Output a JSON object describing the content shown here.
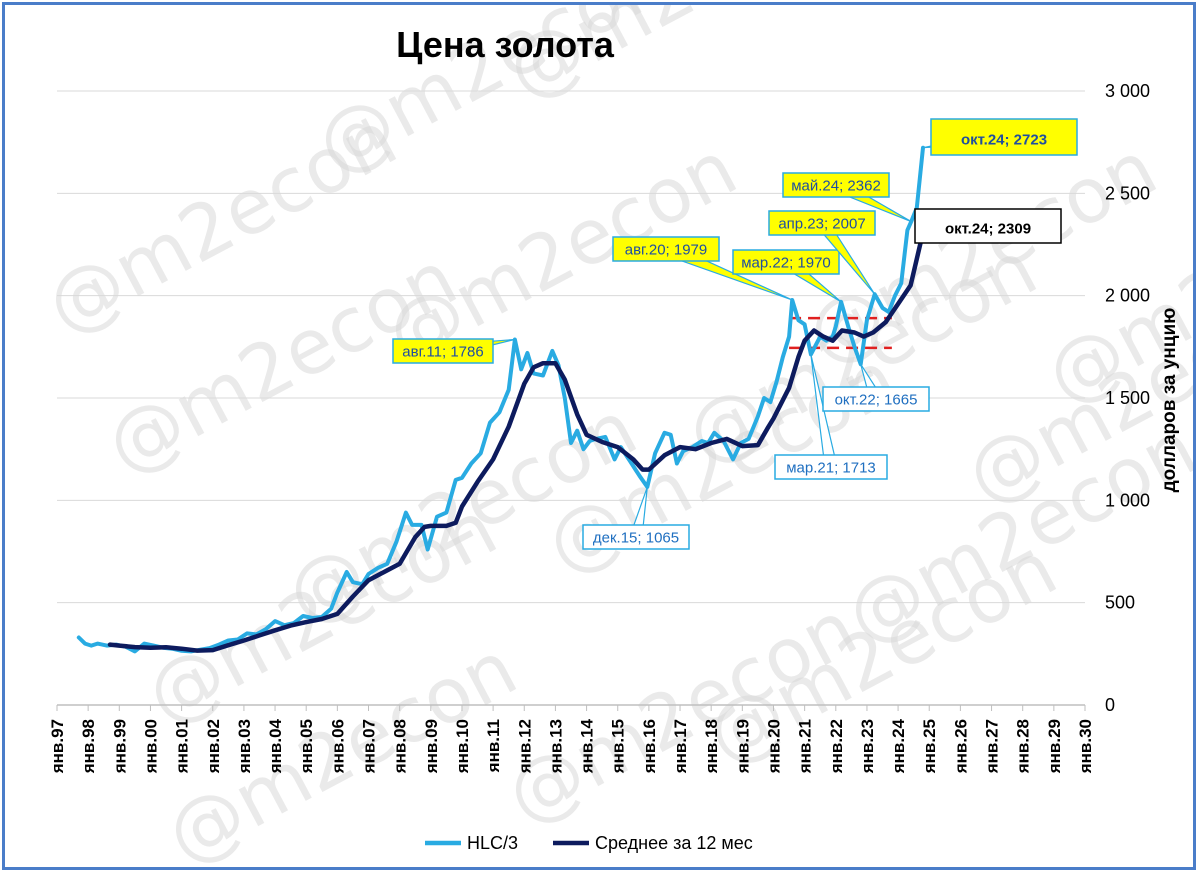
{
  "chart_data": {
    "type": "line",
    "title": "Цена золота",
    "ylabel": "долларов за унцию",
    "ylim": [
      0,
      3000
    ],
    "yticks": [
      0,
      500,
      1000,
      1500,
      2000,
      2500,
      3000
    ],
    "ytick_labels": [
      "0",
      "500",
      "1 000",
      "1 500",
      "2 000",
      "2 500",
      "3 000"
    ],
    "y_axis_position": "right",
    "xlim": [
      1997,
      2030
    ],
    "xtick_labels": [
      "янв.97",
      "янв.98",
      "янв.99",
      "янв.00",
      "янв.01",
      "янв.02",
      "янв.03",
      "янв.04",
      "янв.05",
      "янв.06",
      "янв.07",
      "янв.08",
      "янв.09",
      "янв.10",
      "янв.11",
      "янв.12",
      "янв.13",
      "янв.14",
      "янв.15",
      "янв.16",
      "янв.17",
      "янв.18",
      "янв.19",
      "янв.20",
      "янв.21",
      "янв.22",
      "янв.23",
      "янв.24",
      "янв.25",
      "янв.26",
      "янв.27",
      "янв.28",
      "янв.29",
      "янв.30"
    ],
    "grid": "horizontal",
    "legend_position": "bottom-center",
    "watermark": "@m2econ",
    "series": [
      {
        "name": "HLC/3",
        "color": "#29abe2",
        "points": [
          [
            1997.7,
            330
          ],
          [
            1997.9,
            300
          ],
          [
            1998.1,
            290
          ],
          [
            1998.3,
            300
          ],
          [
            1998.6,
            290
          ],
          [
            1998.9,
            295
          ],
          [
            1999.2,
            285
          ],
          [
            1999.5,
            262
          ],
          [
            1999.8,
            300
          ],
          [
            2000.1,
            290
          ],
          [
            2000.4,
            280
          ],
          [
            2000.7,
            275
          ],
          [
            2001.0,
            265
          ],
          [
            2001.3,
            262
          ],
          [
            2001.6,
            270
          ],
          [
            2001.9,
            278
          ],
          [
            2002.2,
            295
          ],
          [
            2002.5,
            315
          ],
          [
            2002.8,
            320
          ],
          [
            2003.1,
            350
          ],
          [
            2003.4,
            345
          ],
          [
            2003.7,
            370
          ],
          [
            2004.0,
            410
          ],
          [
            2004.3,
            390
          ],
          [
            2004.6,
            400
          ],
          [
            2004.9,
            435
          ],
          [
            2005.2,
            425
          ],
          [
            2005.5,
            430
          ],
          [
            2005.8,
            470
          ],
          [
            2006.0,
            550
          ],
          [
            2006.3,
            650
          ],
          [
            2006.5,
            600
          ],
          [
            2006.8,
            590
          ],
          [
            2007.0,
            640
          ],
          [
            2007.3,
            670
          ],
          [
            2007.6,
            690
          ],
          [
            2007.9,
            800
          ],
          [
            2008.2,
            940
          ],
          [
            2008.4,
            880
          ],
          [
            2008.7,
            880
          ],
          [
            2008.9,
            760
          ],
          [
            2009.2,
            920
          ],
          [
            2009.5,
            940
          ],
          [
            2009.8,
            1100
          ],
          [
            2010.0,
            1110
          ],
          [
            2010.3,
            1180
          ],
          [
            2010.6,
            1230
          ],
          [
            2010.9,
            1380
          ],
          [
            2011.2,
            1430
          ],
          [
            2011.5,
            1540
          ],
          [
            2011.7,
            1786
          ],
          [
            2011.9,
            1640
          ],
          [
            2012.1,
            1720
          ],
          [
            2012.3,
            1620
          ],
          [
            2012.6,
            1610
          ],
          [
            2012.9,
            1730
          ],
          [
            2013.1,
            1660
          ],
          [
            2013.3,
            1500
          ],
          [
            2013.5,
            1280
          ],
          [
            2013.7,
            1340
          ],
          [
            2013.9,
            1250
          ],
          [
            2014.1,
            1290
          ],
          [
            2014.3,
            1300
          ],
          [
            2014.6,
            1310
          ],
          [
            2014.9,
            1200
          ],
          [
            2015.1,
            1260
          ],
          [
            2015.4,
            1190
          ],
          [
            2015.7,
            1120
          ],
          [
            2015.95,
            1065
          ],
          [
            2016.2,
            1230
          ],
          [
            2016.5,
            1330
          ],
          [
            2016.7,
            1320
          ],
          [
            2016.9,
            1180
          ],
          [
            2017.1,
            1240
          ],
          [
            2017.4,
            1260
          ],
          [
            2017.7,
            1290
          ],
          [
            2017.9,
            1280
          ],
          [
            2018.1,
            1330
          ],
          [
            2018.4,
            1290
          ],
          [
            2018.7,
            1200
          ],
          [
            2018.95,
            1280
          ],
          [
            2019.2,
            1300
          ],
          [
            2019.5,
            1410
          ],
          [
            2019.7,
            1500
          ],
          [
            2019.9,
            1480
          ],
          [
            2020.1,
            1580
          ],
          [
            2020.3,
            1700
          ],
          [
            2020.5,
            1800
          ],
          [
            2020.6,
            1979
          ],
          [
            2020.8,
            1880
          ],
          [
            2021.0,
            1860
          ],
          [
            2021.2,
            1713
          ],
          [
            2021.5,
            1800
          ],
          [
            2021.7,
            1780
          ],
          [
            2021.9,
            1800
          ],
          [
            2022.0,
            1850
          ],
          [
            2022.17,
            1970
          ],
          [
            2022.4,
            1850
          ],
          [
            2022.6,
            1750
          ],
          [
            2022.8,
            1665
          ],
          [
            2023.0,
            1880
          ],
          [
            2023.25,
            2007
          ],
          [
            2023.5,
            1940
          ],
          [
            2023.7,
            1920
          ],
          [
            2023.9,
            2000
          ],
          [
            2024.1,
            2060
          ],
          [
            2024.3,
            2320
          ],
          [
            2024.42,
            2362
          ],
          [
            2024.6,
            2430
          ],
          [
            2024.8,
            2723
          ]
        ]
      },
      {
        "name": "Среднее за 12 мес",
        "color": "#0d1b5e",
        "points": [
          [
            1998.7,
            295
          ],
          [
            1999.0,
            290
          ],
          [
            1999.5,
            283
          ],
          [
            2000.0,
            280
          ],
          [
            2000.5,
            282
          ],
          [
            2001.0,
            275
          ],
          [
            2001.5,
            266
          ],
          [
            2002.0,
            268
          ],
          [
            2002.5,
            292
          ],
          [
            2003.0,
            315
          ],
          [
            2003.5,
            340
          ],
          [
            2004.0,
            365
          ],
          [
            2004.5,
            388
          ],
          [
            2005.0,
            405
          ],
          [
            2005.5,
            420
          ],
          [
            2006.0,
            445
          ],
          [
            2006.5,
            530
          ],
          [
            2007.0,
            610
          ],
          [
            2007.5,
            650
          ],
          [
            2008.0,
            690
          ],
          [
            2008.5,
            820
          ],
          [
            2008.8,
            870
          ],
          [
            2009.0,
            875
          ],
          [
            2009.5,
            875
          ],
          [
            2009.8,
            890
          ],
          [
            2010.0,
            970
          ],
          [
            2010.5,
            1090
          ],
          [
            2011.0,
            1200
          ],
          [
            2011.5,
            1360
          ],
          [
            2012.0,
            1570
          ],
          [
            2012.3,
            1650
          ],
          [
            2012.6,
            1670
          ],
          [
            2013.0,
            1670
          ],
          [
            2013.3,
            1590
          ],
          [
            2013.7,
            1420
          ],
          [
            2014.0,
            1320
          ],
          [
            2014.5,
            1285
          ],
          [
            2015.0,
            1260
          ],
          [
            2015.5,
            1200
          ],
          [
            2015.8,
            1150
          ],
          [
            2016.0,
            1150
          ],
          [
            2016.5,
            1220
          ],
          [
            2017.0,
            1260
          ],
          [
            2017.5,
            1250
          ],
          [
            2018.0,
            1280
          ],
          [
            2018.5,
            1300
          ],
          [
            2019.0,
            1265
          ],
          [
            2019.5,
            1270
          ],
          [
            2019.8,
            1350
          ],
          [
            2020.0,
            1400
          ],
          [
            2020.5,
            1550
          ],
          [
            2020.8,
            1700
          ],
          [
            2021.0,
            1780
          ],
          [
            2021.3,
            1830
          ],
          [
            2021.6,
            1800
          ],
          [
            2021.9,
            1780
          ],
          [
            2022.2,
            1830
          ],
          [
            2022.6,
            1820
          ],
          [
            2022.9,
            1800
          ],
          [
            2023.2,
            1820
          ],
          [
            2023.6,
            1870
          ],
          [
            2024.0,
            1960
          ],
          [
            2024.4,
            2050
          ],
          [
            2024.8,
            2309
          ]
        ]
      }
    ],
    "reference_lines": [
      {
        "y": 1890,
        "x_range": [
          2020.5,
          2023.8
        ],
        "style": "dashed",
        "color": "#e02020"
      },
      {
        "y": 1745,
        "x_range": [
          2020.5,
          2023.8
        ],
        "style": "dashed",
        "color": "#e02020"
      }
    ],
    "annotations": [
      {
        "text": "авг.11; 1786",
        "x": 2011.7,
        "y": 1786,
        "box": "yellow",
        "text_color": "#1f4fa0"
      },
      {
        "text": "авг.20; 1979",
        "x": 2020.6,
        "y": 1979,
        "box": "yellow",
        "text_color": "#1f4fa0"
      },
      {
        "text": "мар.22; 1970",
        "x": 2022.17,
        "y": 1970,
        "box": "yellow",
        "text_color": "#1f4fa0"
      },
      {
        "text": "апр.23; 2007",
        "x": 2023.25,
        "y": 2007,
        "box": "yellow",
        "text_color": "#1f4fa0"
      },
      {
        "text": "май.24; 2362",
        "x": 2024.42,
        "y": 2362,
        "box": "yellow",
        "text_color": "#1f4fa0"
      },
      {
        "text": "окт.24; 2723",
        "x": 2024.8,
        "y": 2723,
        "box": "yellow",
        "text_color": "#1f4fa0",
        "emphasis": true
      },
      {
        "text": "окт.24; 2309",
        "x": 2024.8,
        "y": 2309,
        "box": "white",
        "text_color": "#000000",
        "emphasis": true
      },
      {
        "text": "дек.15; 1065",
        "x": 2015.95,
        "y": 1065,
        "box": "white-blue",
        "text_color": "#1f6fc0"
      },
      {
        "text": "мар.21; 1713",
        "x": 2021.2,
        "y": 1713,
        "box": "white-blue",
        "text_color": "#1f6fc0"
      },
      {
        "text": "окт.22; 1665",
        "x": 2022.8,
        "y": 1665,
        "box": "white-blue",
        "text_color": "#1f6fc0"
      }
    ]
  }
}
